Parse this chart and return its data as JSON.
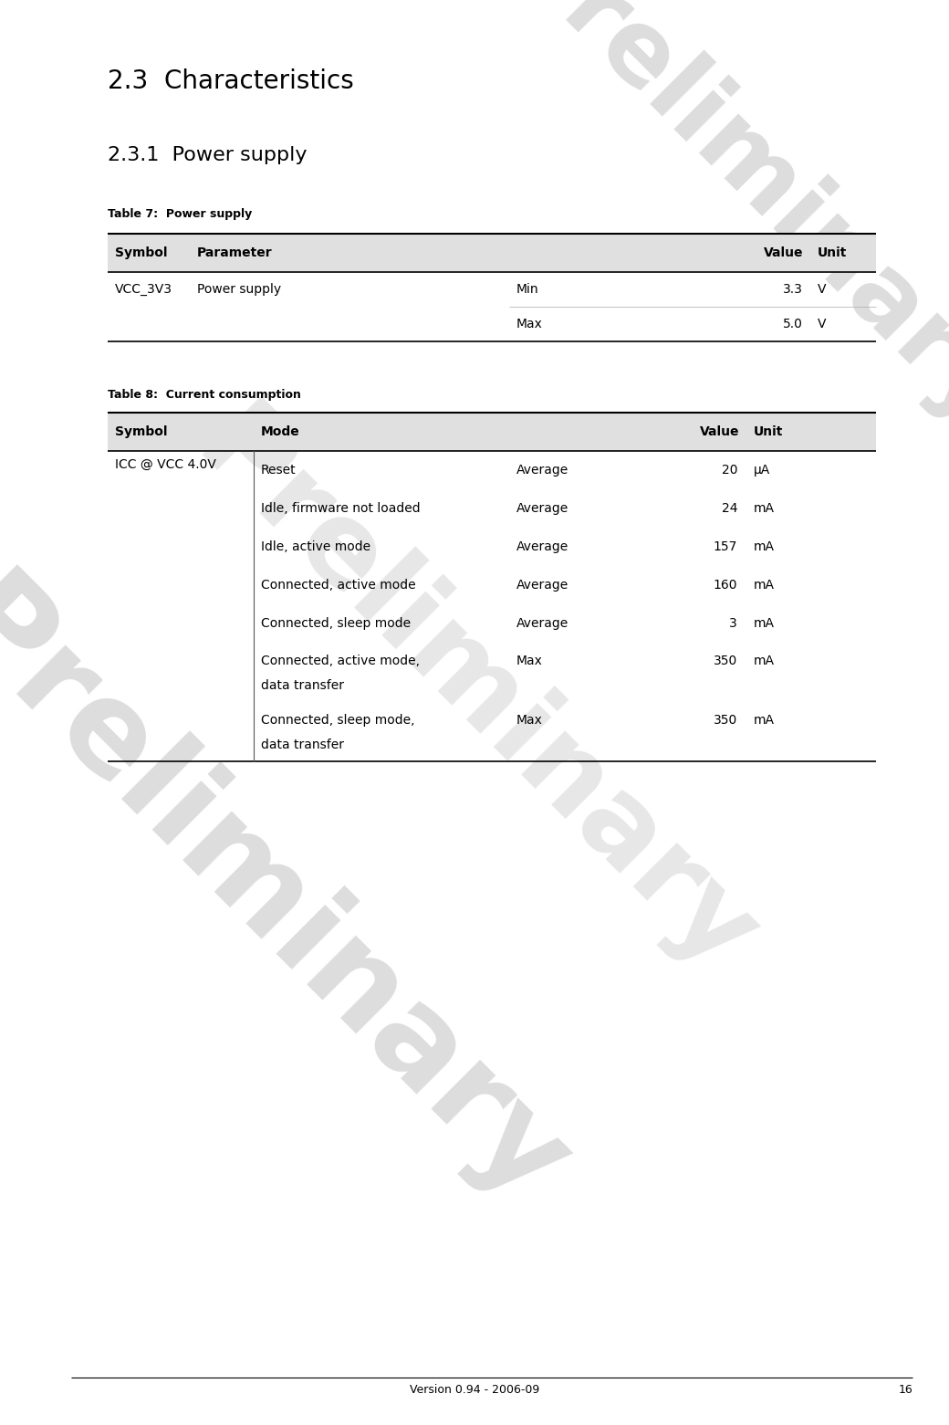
{
  "page_title": "2.3  Characteristics",
  "section_title": "2.3.1  Power supply",
  "table7_caption": "Table 7:  Power supply",
  "table7_headers": [
    "Symbol",
    "Parameter",
    "",
    "Value",
    "Unit"
  ],
  "table7_rows": [
    [
      "VCC_3V3",
      "Power supply",
      "Min",
      "3.3",
      "V"
    ],
    [
      "",
      "",
      "Max",
      "5.0",
      "V"
    ]
  ],
  "table8_caption": "Table 8:  Current consumption",
  "table8_headers": [
    "Symbol",
    "Mode",
    "",
    "Value",
    "Unit"
  ],
  "table8_rows": [
    [
      "ICC @ VCC 4.0V",
      "Reset",
      "Average",
      "20",
      "µA"
    ],
    [
      "",
      "Idle, firmware not loaded",
      "Average",
      "24",
      "mA"
    ],
    [
      "",
      "Idle, active mode",
      "Average",
      "157",
      "mA"
    ],
    [
      "",
      "Connected, active mode",
      "Average",
      "160",
      "mA"
    ],
    [
      "",
      "Connected, sleep mode",
      "Average",
      "3",
      "mA"
    ],
    [
      "",
      "Connected, active mode,\ndata transfer",
      "Max",
      "350",
      "mA"
    ],
    [
      "",
      "Connected, sleep mode,\ndata transfer",
      "Max",
      "350",
      "mA"
    ]
  ],
  "footer_text": "Version 0.94 - 2006-09",
  "footer_page": "16",
  "watermark_text": "Preliminary",
  "header_bg": "#e0e0e0",
  "row_bg": "#ffffff",
  "border_color": "#000000",
  "text_color": "#000000",
  "watermark_color": "#bbbbbb",
  "title_fontsize": 20,
  "subtitle_fontsize": 16,
  "caption_fontsize": 9,
  "table_fontsize": 10,
  "footer_fontsize": 9
}
